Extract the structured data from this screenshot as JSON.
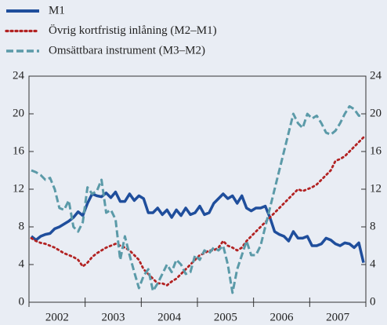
{
  "chart_data": {
    "type": "line",
    "categories": [
      null,
      null,
      null,
      null,
      null,
      null,
      "2002",
      null,
      null,
      null,
      null,
      null,
      null,
      null,
      null,
      null,
      null,
      null,
      "2003",
      null,
      null,
      null,
      null,
      null,
      null,
      null,
      null,
      null,
      null,
      null,
      "2004",
      null,
      null,
      null,
      null,
      null,
      null,
      null,
      null,
      null,
      null,
      null,
      "2005",
      null,
      null,
      null,
      null,
      null,
      null,
      null,
      null,
      null,
      null,
      null,
      "2006",
      null,
      null,
      null,
      null,
      null,
      null,
      null,
      null,
      null,
      null,
      null,
      "2007",
      null,
      null,
      null,
      null,
      null
    ],
    "series": [
      {
        "name": "M1",
        "color": "#1f4e9c",
        "style": "solid",
        "values": [
          7.0,
          6.6,
          7.0,
          7.2,
          7.3,
          7.8,
          8.0,
          8.3,
          8.6,
          9.0,
          9.6,
          9.2,
          10.5,
          11.5,
          11.3,
          11.2,
          11.6,
          11.1,
          11.7,
          10.7,
          10.7,
          11.5,
          10.8,
          11.3,
          11.0,
          9.5,
          9.5,
          10.0,
          9.3,
          9.8,
          9.0,
          9.8,
          9.2,
          10.0,
          9.3,
          9.5,
          10.2,
          9.3,
          9.5,
          10.5,
          11.0,
          11.5,
          11.0,
          11.3,
          10.5,
          11.3,
          10.0,
          9.7,
          10.0,
          10.0,
          10.2,
          9.0,
          7.5,
          7.2,
          7.0,
          6.5,
          7.5,
          6.8,
          6.8,
          7.0,
          6.0,
          6.0,
          6.2,
          6.8,
          6.6,
          6.2,
          6.0,
          6.3,
          6.2,
          5.8,
          6.3,
          4.2
        ]
      },
      {
        "name": "Övrig kortfristig inlåning (M2–M1)",
        "color": "#b22222",
        "style": "dotted",
        "values": [
          6.8,
          6.5,
          6.3,
          6.2,
          6.0,
          5.8,
          5.5,
          5.2,
          5.0,
          4.8,
          4.5,
          3.8,
          4.2,
          4.8,
          5.2,
          5.5,
          5.8,
          6.0,
          6.2,
          6.0,
          5.8,
          5.5,
          5.0,
          4.5,
          3.5,
          3.0,
          2.5,
          2.0,
          2.0,
          1.8,
          2.2,
          2.5,
          3.0,
          3.5,
          4.0,
          4.5,
          5.0,
          5.2,
          5.5,
          5.5,
          5.8,
          6.5,
          6.0,
          5.8,
          5.5,
          5.8,
          6.5,
          7.0,
          7.5,
          8.0,
          8.5,
          9.0,
          9.5,
          10.0,
          10.5,
          11.0,
          11.5,
          12.0,
          11.8,
          12.0,
          12.2,
          12.5,
          13.0,
          13.5,
          14.0,
          15.0,
          15.2,
          15.5,
          16.0,
          16.5,
          17.0,
          17.5
        ]
      },
      {
        "name": "Omsättbara instrument (M3–M2)",
        "color": "#5b9aa8",
        "style": "dashed",
        "values": [
          14.0,
          13.8,
          13.5,
          13.0,
          13.2,
          12.0,
          10.0,
          9.8,
          10.8,
          8.0,
          7.5,
          8.5,
          12.2,
          11.5,
          11.8,
          13.0,
          9.5,
          9.8,
          8.8,
          4.5,
          7.0,
          5.0,
          3.2,
          1.5,
          2.8,
          3.5,
          1.2,
          2.0,
          3.0,
          4.0,
          3.2,
          4.5,
          4.0,
          3.0,
          3.2,
          5.0,
          4.5,
          5.5,
          5.2,
          5.8,
          5.5,
          6.0,
          4.0,
          1.0,
          3.5,
          5.0,
          6.5,
          5.0,
          5.0,
          6.0,
          8.0,
          10.0,
          12.0,
          14.0,
          16.0,
          18.0,
          20.0,
          19.0,
          18.5,
          20.0,
          19.5,
          19.8,
          19.0,
          18.0,
          17.8,
          18.2,
          19.0,
          20.0,
          20.8,
          20.5,
          19.8,
          19.8
        ]
      }
    ],
    "ylim": [
      0,
      24
    ],
    "yticks": [
      0,
      4,
      8,
      12,
      16,
      20,
      24
    ],
    "y2lim": [
      0,
      24
    ],
    "y2ticks": [
      0,
      4,
      8,
      12,
      16,
      20,
      24
    ],
    "grid": false,
    "legend": "top-left"
  }
}
